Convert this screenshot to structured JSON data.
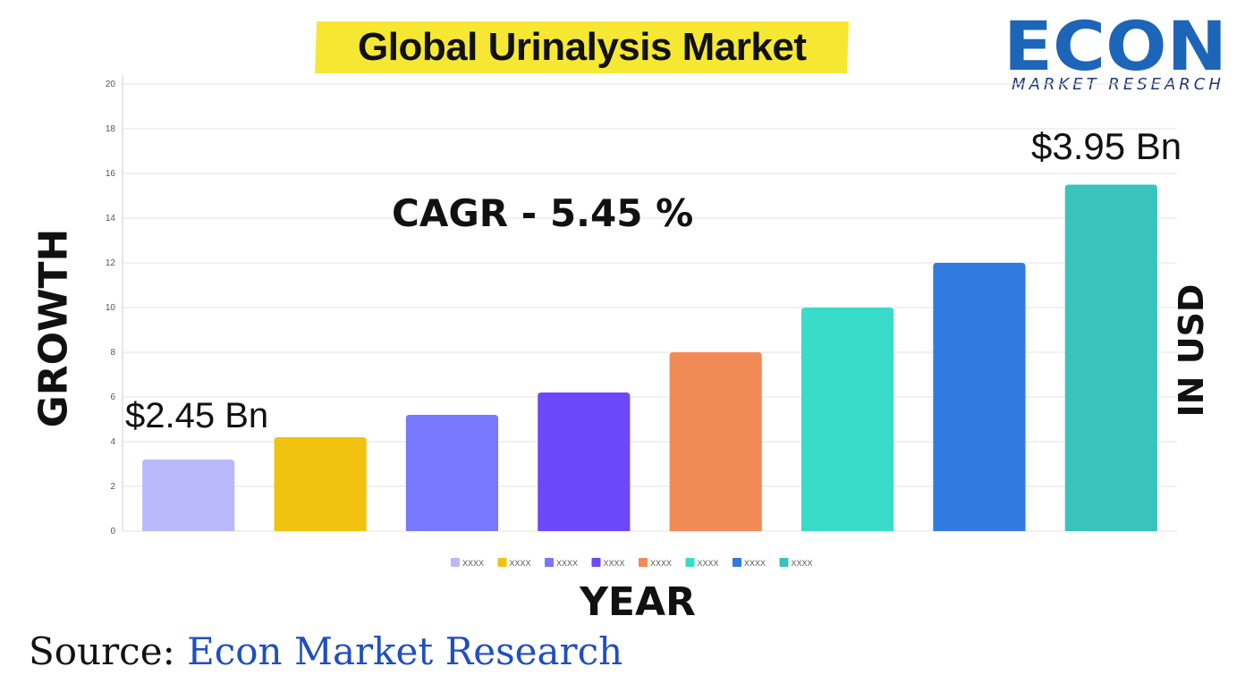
{
  "title": "Global Urinalysis Market",
  "logo": {
    "main": "ECON",
    "sub": "MARKET RESEARCH"
  },
  "axis_left_label": "GROWTH",
  "axis_right_label": "IN USD",
  "axis_x_label": "YEAR",
  "cagr_text": "CAGR  - 5.45 %",
  "annotation_start": "$2.45 Bn",
  "annotation_end": "$3.95 Bn",
  "source": {
    "prefix": "Source:",
    "name": " Econ Market Research"
  },
  "chart_data": {
    "type": "bar",
    "title": "Global Urinalysis Market",
    "xlabel": "YEAR",
    "ylabel": "GROWTH",
    "ylim": [
      0,
      20
    ],
    "yticks": [
      0,
      2,
      4,
      6,
      8,
      10,
      12,
      14,
      16,
      18,
      20
    ],
    "grid": true,
    "legend_position": "bottom",
    "series": [
      {
        "name": "XXXX",
        "value": 3.2,
        "color": "#b9b9fb"
      },
      {
        "name": "XXXX",
        "value": 4.2,
        "color": "#f2c211"
      },
      {
        "name": "XXXX",
        "value": 5.2,
        "color": "#7878fd"
      },
      {
        "name": "XXXX",
        "value": 6.2,
        "color": "#6c48fb"
      },
      {
        "name": "XXXX",
        "value": 8.0,
        "color": "#f28a55"
      },
      {
        "name": "XXXX",
        "value": 10.0,
        "color": "#38dcc8"
      },
      {
        "name": "XXXX",
        "value": 12.0,
        "color": "#317ae0"
      },
      {
        "name": "XXXX",
        "value": 15.5,
        "color": "#38c4bc"
      }
    ],
    "annotations": [
      "$2.45 Bn",
      "$3.95 Bn",
      "CAGR  - 5.45 %"
    ]
  }
}
